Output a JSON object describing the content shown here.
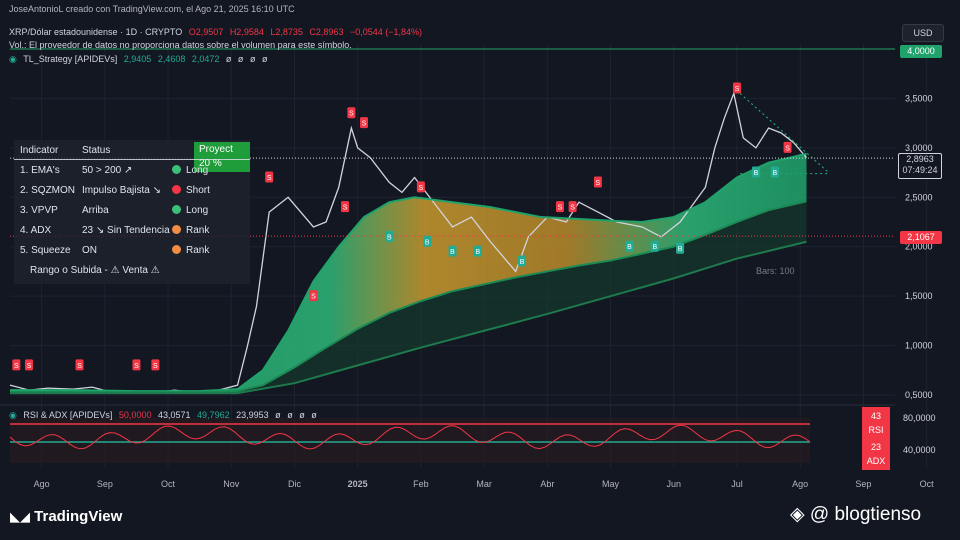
{
  "header": {
    "creator": "JoseAntonioL creado con TradingView.com, el Ago 21, 2025 16:10 UTC",
    "symbol": "XRP/Dólar estadounidense · 1D · CRYPTO",
    "ohlc": {
      "o": "O2,9507",
      "h": "H2,9584",
      "l": "L2,8735",
      "c": "C2,8963",
      "change": "−0,0544 (−1,84%)"
    },
    "volume_note": "Vol.: El proveedor de datos no proporciona datos sobre el volumen para este símbolo.",
    "strategy_name": "TL_Strategy [APIDEVs]",
    "strategy_values": [
      "2,9405",
      "2,4608",
      "2,0472",
      "ø",
      "ø",
      "ø",
      "ø"
    ]
  },
  "currency_button": "USD",
  "price_tags": {
    "top": "4,0000",
    "current": "2,8963",
    "countdown": "07:49:24",
    "level": "2,1067"
  },
  "bars_label": "Bars: 100",
  "indicator_table": {
    "headers": {
      "indicator": "Indicator",
      "status": "Status",
      "proyect": "Proyect 20 %"
    },
    "rows": [
      {
        "indicator": "1. EMA's",
        "status": "50 > 200 ↗",
        "signal": "Long",
        "color": "#3dbf7c"
      },
      {
        "indicator": "2. SQZMON",
        "status": "Impulso Bajista ↘",
        "signal": "Short",
        "color": "#f23645"
      },
      {
        "indicator": "3. VPVP",
        "status": "Arriba",
        "signal": "Long",
        "color": "#3dbf7c"
      },
      {
        "indicator": "4. ADX",
        "status": "23 ↘ Sin Tendencia",
        "signal": "Rank",
        "color": "#f28c45"
      },
      {
        "indicator": "5. Squeeze",
        "status": "ON",
        "signal": "Rank",
        "color": "#f28c45"
      }
    ],
    "footer": "Rango o Subida - ⚠ Venta ⚠"
  },
  "oscillator": {
    "name": "RSI & ADX [APIDEVs]",
    "values": [
      "50,0000",
      "43,0571",
      "49,7962",
      "23,9953",
      "ø",
      "ø",
      "ø",
      "ø"
    ],
    "ticks": [
      "80,0000",
      "40,0000"
    ],
    "rsi_badge": {
      "value": "43",
      "label": "RSI"
    },
    "adx_badge": {
      "value": "23",
      "label": "ADX"
    }
  },
  "footer": {
    "logo": "TradingView",
    "right": "@ blogtienso"
  },
  "chart_data": {
    "type": "line",
    "title": "XRP/Dólar estadounidense · 1D · CRYPTO",
    "x_labels": [
      "Ago",
      "Sep",
      "Oct",
      "Nov",
      "Dic",
      "2025",
      "Feb",
      "Mar",
      "Abr",
      "May",
      "Jun",
      "Jul",
      "Ago",
      "Sep",
      "Oct"
    ],
    "y_ticks": [
      0.5,
      1.0,
      1.5,
      2.0,
      2.5,
      3.0,
      3.5
    ],
    "y_tick_labels": [
      "0,5000",
      "1,0000",
      "1,5000",
      "2,0000",
      "2,5000",
      "3,0000",
      "3,5000"
    ],
    "ylim": [
      0.45,
      4.05
    ],
    "series": [
      {
        "name": "Precio",
        "color": "#d1d4dc",
        "x": [
          0,
          0.3,
          0.6,
          1,
          1.3,
          1.6,
          2,
          2.3,
          2.6,
          3,
          3.3,
          3.6,
          3.75,
          3.9,
          4.1,
          4.4,
          4.8,
          5,
          5.2,
          5.4,
          5.5,
          5.7,
          6,
          6.2,
          6.4,
          6.7,
          7,
          7.3,
          7.6,
          8,
          8.2,
          8.5,
          8.8,
          9,
          9.3,
          9.6,
          10,
          10.3,
          10.6,
          11,
          11.15,
          11.3,
          11.45,
          11.6,
          11.8,
          12,
          12.2,
          12.4,
          12.6
        ],
        "y": [
          0.6,
          0.55,
          0.57,
          0.56,
          0.58,
          0.53,
          0.54,
          0.52,
          0.55,
          0.52,
          0.55,
          0.6,
          0.98,
          1.4,
          2.35,
          2.5,
          2.2,
          2.25,
          2.6,
          3.2,
          3.0,
          2.9,
          2.65,
          2.55,
          2.7,
          2.45,
          2.2,
          2.3,
          2.05,
          1.75,
          2.1,
          2.3,
          2.25,
          2.45,
          2.35,
          2.25,
          2.2,
          2.1,
          2.25,
          2.6,
          3.0,
          3.3,
          3.55,
          3.1,
          3.0,
          3.2,
          3.15,
          3.05,
          2.9
        ]
      },
      {
        "name": "EMA 50",
        "color": "#1fa36b",
        "x": [
          0,
          1,
          2,
          3,
          3.6,
          4,
          4.4,
          4.8,
          5.2,
          5.6,
          6,
          6.4,
          7,
          7.6,
          8,
          8.4,
          9,
          9.6,
          10,
          10.5,
          11,
          11.5,
          12,
          12.6
        ],
        "y": [
          0.55,
          0.55,
          0.54,
          0.54,
          0.56,
          0.75,
          1.15,
          1.65,
          2.0,
          2.3,
          2.45,
          2.5,
          2.45,
          2.4,
          2.35,
          2.3,
          2.28,
          2.26,
          2.25,
          2.3,
          2.45,
          2.7,
          2.85,
          2.94
        ]
      },
      {
        "name": "EMA 200",
        "color": "#1b8a55",
        "x": [
          0,
          1,
          2,
          3,
          3.6,
          4,
          4.5,
          5,
          5.5,
          6,
          6.5,
          7,
          7.5,
          8,
          8.5,
          9,
          9.5,
          10,
          10.5,
          11,
          11.5,
          12,
          12.6
        ],
        "y": [
          0.53,
          0.53,
          0.53,
          0.53,
          0.54,
          0.6,
          0.78,
          0.98,
          1.17,
          1.33,
          1.45,
          1.55,
          1.62,
          1.69,
          1.75,
          1.81,
          1.86,
          1.93,
          2.0,
          2.12,
          2.25,
          2.37,
          2.46
        ]
      },
      {
        "name": "EMA 3",
        "color": "#1e7a4c",
        "x": [
          0,
          2,
          3.6,
          4.5,
          5.5,
          6.5,
          7.5,
          8.5,
          9.5,
          10.5,
          11.5,
          12.6
        ],
        "y": [
          0.52,
          0.52,
          0.52,
          0.62,
          0.8,
          0.98,
          1.15,
          1.32,
          1.5,
          1.68,
          1.88,
          2.05
        ]
      }
    ],
    "horizontal_lines": [
      2.8963,
      2.1067,
      4.0
    ],
    "signals": [
      {
        "x": 0.1,
        "y": 0.8,
        "label": "S"
      },
      {
        "x": 0.3,
        "y": 0.8,
        "label": "S"
      },
      {
        "x": 1.1,
        "y": 0.8,
        "label": "S"
      },
      {
        "x": 2.0,
        "y": 0.8,
        "label": "S"
      },
      {
        "x": 2.3,
        "y": 0.8,
        "label": "S"
      },
      {
        "x": 4.1,
        "y": 2.7,
        "label": "S"
      },
      {
        "x": 4.8,
        "y": 1.5,
        "label": "S"
      },
      {
        "x": 5.4,
        "y": 3.35,
        "label": "S"
      },
      {
        "x": 5.6,
        "y": 3.25,
        "label": "S"
      },
      {
        "x": 5.3,
        "y": 2.4,
        "label": "S"
      },
      {
        "x": 6.5,
        "y": 2.6,
        "label": "S"
      },
      {
        "x": 8.7,
        "y": 2.4,
        "label": "S"
      },
      {
        "x": 8.9,
        "y": 2.4,
        "label": "S"
      },
      {
        "x": 9.3,
        "y": 2.65,
        "label": "S"
      },
      {
        "x": 11.5,
        "y": 3.6,
        "label": "S"
      },
      {
        "x": 12.3,
        "y": 3.0,
        "label": "S"
      },
      {
        "x": 6.0,
        "y": 2.1,
        "label": "B"
      },
      {
        "x": 6.6,
        "y": 2.05,
        "label": "B"
      },
      {
        "x": 7.0,
        "y": 1.95,
        "label": "B"
      },
      {
        "x": 7.4,
        "y": 1.95,
        "label": "B"
      },
      {
        "x": 8.1,
        "y": 1.85,
        "label": "B"
      },
      {
        "x": 9.8,
        "y": 2.0,
        "label": "B"
      },
      {
        "x": 10.2,
        "y": 2.0,
        "label": "B"
      },
      {
        "x": 10.6,
        "y": 1.98,
        "label": "B"
      },
      {
        "x": 11.8,
        "y": 2.75,
        "label": "B"
      },
      {
        "x": 12.1,
        "y": 2.75,
        "label": "B"
      }
    ],
    "grid": true
  }
}
